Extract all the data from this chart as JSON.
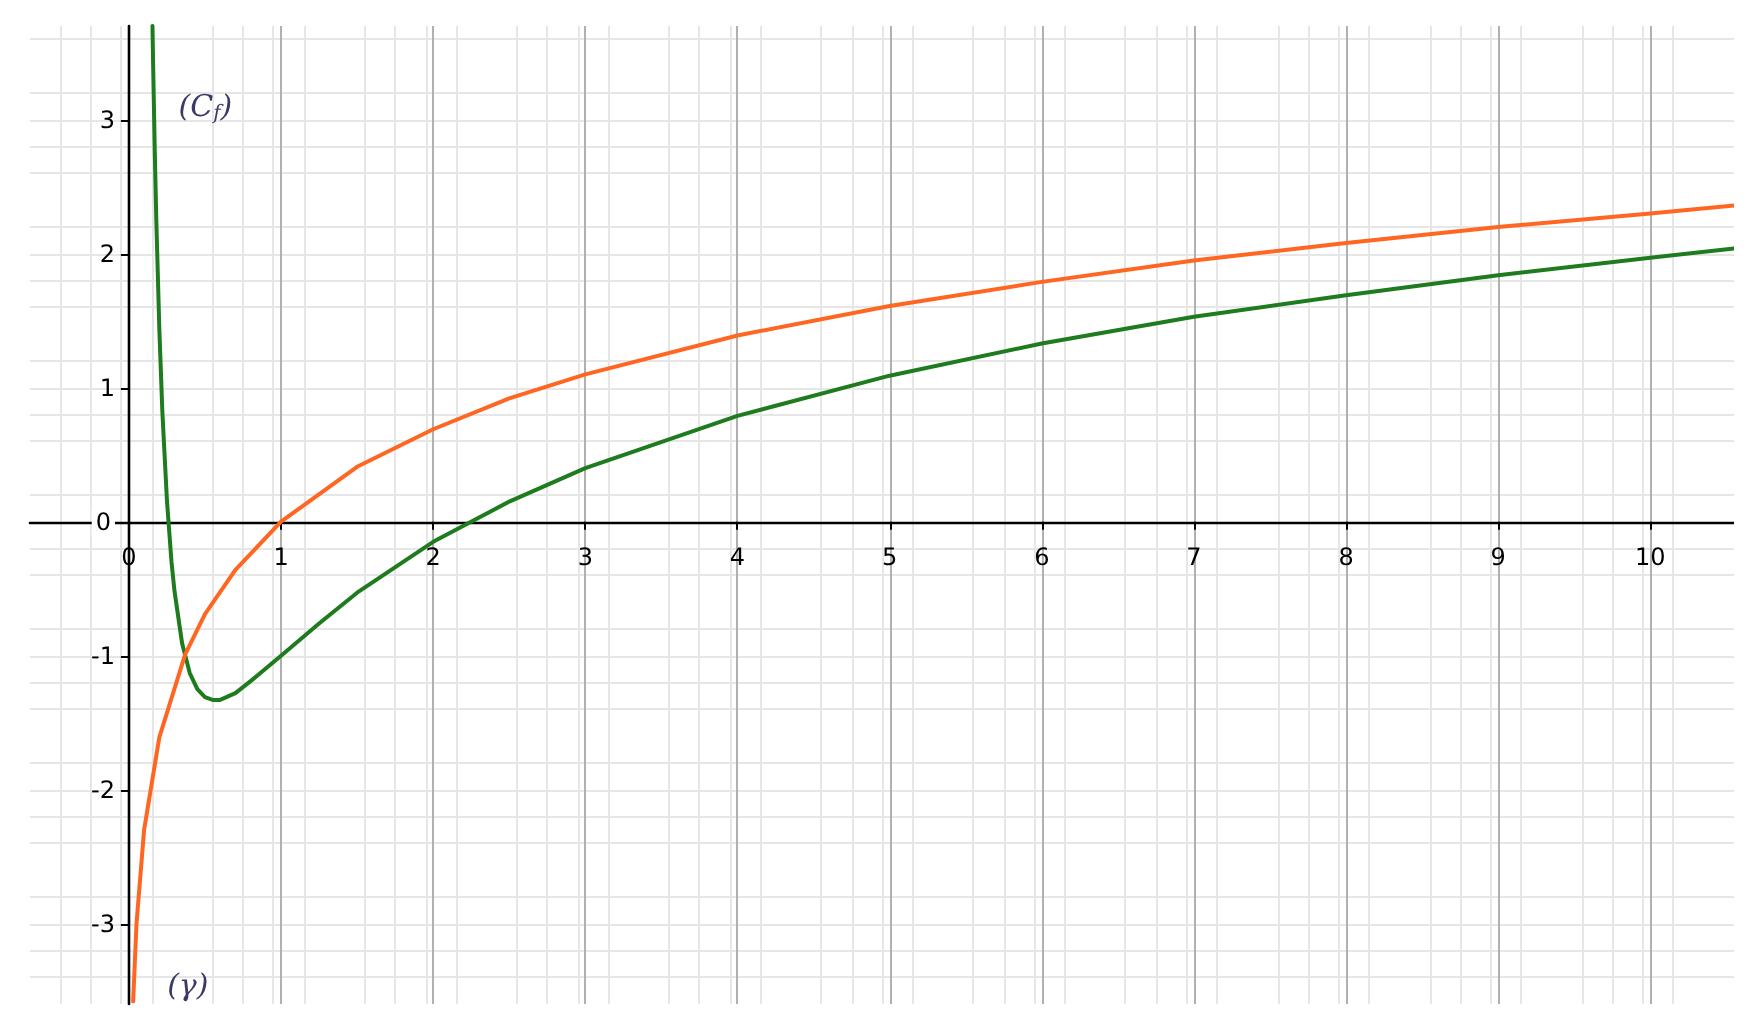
{
  "chart_data": {
    "type": "line",
    "xlim": [
      -0.65,
      10.55
    ],
    "ylim": [
      -3.6,
      3.7
    ],
    "xticks": [
      0,
      1,
      2,
      3,
      4,
      5,
      6,
      7,
      8,
      9,
      10
    ],
    "yticks": [
      -3,
      -2,
      -1,
      0,
      1,
      2,
      3
    ],
    "grid": true,
    "legend": false,
    "marker": "none",
    "line_style": "solid",
    "series": [
      {
        "name": "(C$_{f}$)",
        "color": "#1e7b1e",
        "x": [
          0.155,
          0.16,
          0.17,
          0.18,
          0.2,
          0.22,
          0.25,
          0.28,
          0.3,
          0.35,
          0.4,
          0.45,
          0.5,
          0.55,
          0.6,
          0.7,
          0.8,
          1,
          1.25,
          1.5,
          2,
          2.5,
          3,
          4,
          5,
          6,
          7,
          8,
          9,
          10,
          10.55
        ],
        "values": [
          3.7,
          3.37,
          2.77,
          2.26,
          1.44,
          0.82,
          0.16,
          -0.3,
          -0.52,
          -0.91,
          -1.13,
          -1.25,
          -1.31,
          -1.33,
          -1.33,
          -1.28,
          -1.19,
          -1,
          -0.76,
          -0.53,
          -0.15,
          0.15,
          0.4,
          0.79,
          1.09,
          1.33,
          1.53,
          1.69,
          1.84,
          1.97,
          2.04
        ]
      },
      {
        "name": "(γ)",
        "color": "#ff6622",
        "x": [
          0.028,
          0.05,
          0.1,
          0.2,
          0.37,
          0.5,
          0.7,
          1,
          1.5,
          2,
          2.5,
          3,
          4,
          5,
          6,
          7,
          8,
          9,
          10,
          10.55
        ],
        "values": [
          -3.58,
          -3.0,
          -2.3,
          -1.61,
          -0.99,
          -0.69,
          -0.36,
          0,
          0.41,
          0.69,
          0.92,
          1.1,
          1.39,
          1.61,
          1.79,
          1.95,
          2.08,
          2.2,
          2.3,
          2.36
        ]
      }
    ]
  }
}
